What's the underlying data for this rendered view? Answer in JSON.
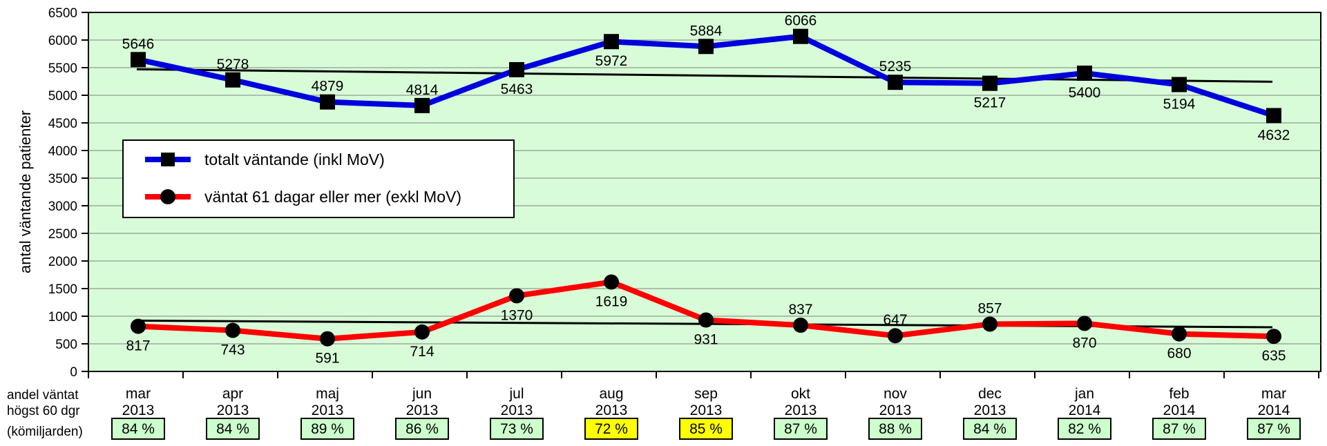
{
  "chart_data": {
    "type": "line",
    "ylabel": "antal väntande patienter",
    "ylim": [
      0,
      6500
    ],
    "yticks": [
      0,
      500,
      1000,
      1500,
      2000,
      2500,
      3000,
      3500,
      4000,
      4500,
      5000,
      5500,
      6000,
      6500
    ],
    "grid": true,
    "legend_position": "left",
    "categories": [
      [
        "mar",
        "2013"
      ],
      [
        "apr",
        "2013"
      ],
      [
        "maj",
        "2013"
      ],
      [
        "jun",
        "2013"
      ],
      [
        "jul",
        "2013"
      ],
      [
        "aug",
        "2013"
      ],
      [
        "sep",
        "2013"
      ],
      [
        "okt",
        "2013"
      ],
      [
        "nov",
        "2013"
      ],
      [
        "dec",
        "2013"
      ],
      [
        "jan",
        "2014"
      ],
      [
        "feb",
        "2014"
      ],
      [
        "mar",
        "2014"
      ]
    ],
    "series": [
      {
        "name": "totalt väntande (inkl MoV)",
        "color": "#0000dd",
        "marker": "square",
        "values": [
          5646,
          5278,
          4879,
          4814,
          5463,
          5972,
          5884,
          6066,
          5235,
          5217,
          5400,
          5194,
          4632
        ],
        "label_positions": [
          "above",
          "above",
          "above",
          "above",
          "below",
          "below",
          "above",
          "above",
          "above",
          "below",
          "below",
          "below",
          "below"
        ]
      },
      {
        "name": "väntat 61 dagar eller mer (exkl MoV)",
        "color": "#ff0000",
        "marker": "circle",
        "values": [
          817,
          743,
          591,
          714,
          1370,
          1619,
          931,
          837,
          647,
          857,
          870,
          680,
          635
        ],
        "label_positions": [
          "below",
          "below",
          "below",
          "below",
          "below",
          "below",
          "below",
          "above",
          "above",
          "above",
          "below",
          "below",
          "below"
        ]
      }
    ],
    "trendlines": [
      {
        "series": "totalt väntande (inkl MoV)",
        "start": 5470,
        "end": 5245,
        "color": "#000000"
      },
      {
        "series": "väntat 61 dagar eller mer (exkl MoV)",
        "start": 920,
        "end": 800,
        "color": "#000000"
      }
    ],
    "bottom_row": {
      "label_lines": [
        "andel väntat",
        "högst 60 dgr",
        "(kömiljarden)"
      ],
      "values": [
        "84 %",
        "84 %",
        "89 %",
        "86 %",
        "73 %",
        "72 %",
        "85 %",
        "87 %",
        "88 %",
        "84 %",
        "82 %",
        "87 %",
        "87 %"
      ],
      "box_colors": [
        "#ccffcc",
        "#ccffcc",
        "#ccffcc",
        "#ccffcc",
        "#ccffcc",
        "#ffff00",
        "#ffff00",
        "#ccffcc",
        "#ccffcc",
        "#ccffcc",
        "#ccffcc",
        "#ccffcc",
        "#ccffcc"
      ]
    },
    "plot_background": "#d8fcd8"
  }
}
